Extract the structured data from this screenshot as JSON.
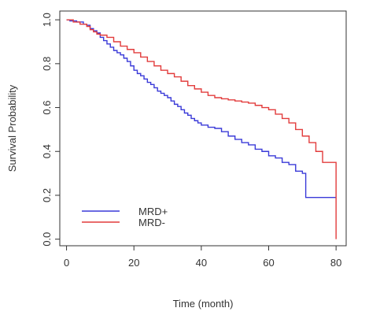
{
  "chart_data": {
    "type": "line",
    "subtype": "kaplan-meier step",
    "title": "",
    "xlabel": "Time (month)",
    "ylabel": "Survival Probability",
    "xlim": [
      -2,
      83
    ],
    "ylim": [
      -0.03,
      1.04
    ],
    "x_ticks": [
      0,
      20,
      40,
      60,
      80
    ],
    "x_tick_labels": [
      "0",
      "20",
      "40",
      "60",
      "80"
    ],
    "y_ticks": [
      0.0,
      0.2,
      0.4,
      0.6,
      0.8,
      1.0
    ],
    "y_tick_labels": [
      "0.0",
      "0.2",
      "0.4",
      "0.6",
      "0.8",
      "1.0"
    ],
    "grid": false,
    "legend_position": "bottom-left",
    "series": [
      {
        "name": "MRD+",
        "color": "#3a3ad8",
        "x": [
          0,
          1,
          3,
          5,
          6,
          7,
          8,
          9,
          10,
          11,
          12,
          13,
          14,
          15,
          16,
          17,
          18,
          19,
          20,
          21,
          22,
          23,
          24,
          25,
          26,
          27,
          28,
          29,
          30,
          31,
          32,
          33,
          34,
          35,
          36,
          37,
          38,
          39,
          40,
          42,
          44,
          46,
          48,
          50,
          52,
          54,
          56,
          58,
          60,
          62,
          64,
          66,
          68,
          70,
          71,
          80
        ],
        "y": [
          1.0,
          0.995,
          0.99,
          0.98,
          0.975,
          0.96,
          0.95,
          0.94,
          0.92,
          0.905,
          0.89,
          0.875,
          0.86,
          0.85,
          0.84,
          0.825,
          0.81,
          0.79,
          0.77,
          0.755,
          0.745,
          0.73,
          0.715,
          0.705,
          0.69,
          0.675,
          0.665,
          0.655,
          0.645,
          0.63,
          0.615,
          0.605,
          0.59,
          0.575,
          0.565,
          0.55,
          0.54,
          0.53,
          0.52,
          0.51,
          0.505,
          0.49,
          0.47,
          0.455,
          0.44,
          0.43,
          0.41,
          0.4,
          0.38,
          0.37,
          0.35,
          0.34,
          0.31,
          0.3,
          0.19,
          0.19
        ]
      },
      {
        "name": "MRD-",
        "color": "#e23c3c",
        "x": [
          0,
          2,
          4,
          6,
          7,
          8,
          9,
          10,
          12,
          14,
          16,
          18,
          20,
          22,
          24,
          26,
          28,
          30,
          32,
          34,
          36,
          38,
          40,
          42,
          44,
          46,
          48,
          50,
          52,
          54,
          56,
          58,
          60,
          62,
          64,
          66,
          68,
          70,
          72,
          74,
          76,
          78,
          80
        ],
        "y": [
          1.0,
          0.99,
          0.98,
          0.97,
          0.955,
          0.945,
          0.935,
          0.93,
          0.92,
          0.9,
          0.88,
          0.865,
          0.85,
          0.83,
          0.81,
          0.79,
          0.77,
          0.755,
          0.74,
          0.72,
          0.7,
          0.685,
          0.67,
          0.655,
          0.645,
          0.64,
          0.635,
          0.63,
          0.625,
          0.62,
          0.61,
          0.6,
          0.59,
          0.57,
          0.55,
          0.53,
          0.5,
          0.47,
          0.44,
          0.4,
          0.35,
          0.35,
          0.0
        ]
      }
    ]
  }
}
